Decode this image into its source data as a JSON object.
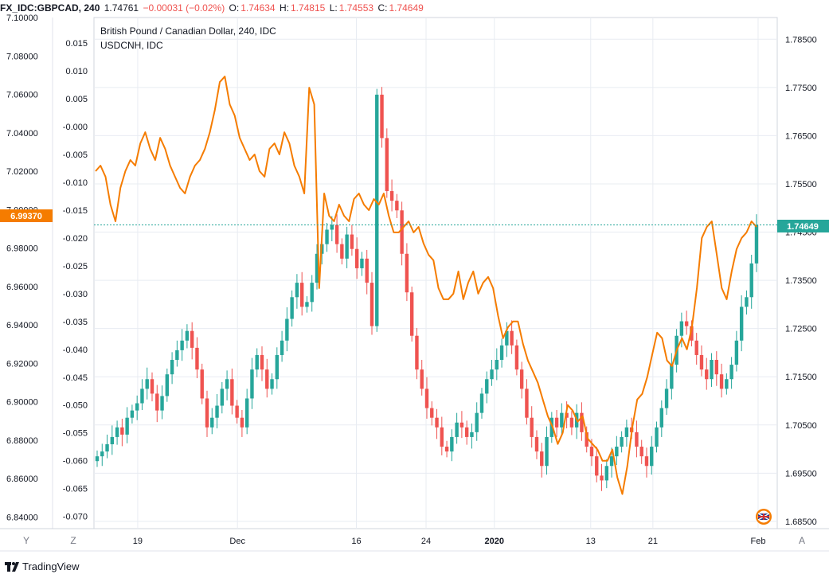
{
  "header": {
    "symbol": "FX_IDC:GBPCAD, 240",
    "last": "1.74761",
    "change": "−0.00031 (−0.02%)",
    "o_label": "O:",
    "o_val": "1.74634",
    "h_label": "H:",
    "h_val": "1.74815",
    "l_label": "L:",
    "l_val": "1.74553",
    "c_label": "C:",
    "c_val": "1.74649"
  },
  "legend": {
    "line1": "British Pound / Canadian Dollar, 240, IDC",
    "line2": "USDCNH, IDC"
  },
  "colors": {
    "up": "#26a69a",
    "down": "#ef5350",
    "overlay": "#f57c00",
    "grid": "#e8ecf2",
    "text": "#131722"
  },
  "price_tags": {
    "left_value": "6.99370",
    "right_value": "1.74649"
  },
  "footer": {
    "brand": "TradingView",
    "y_button": "Y",
    "z_button": "Z",
    "a_button": "A"
  },
  "chart_data": {
    "type": "line",
    "x_ticks": [
      "19",
      "Dec",
      "16",
      "24",
      "2020",
      "13",
      "21",
      "Feb"
    ],
    "left_axis_outer": {
      "ticks": [
        "7.10000",
        "7.08000",
        "7.06000",
        "7.04000",
        "7.02000",
        "7.00000",
        "6.98000",
        "6.96000",
        "6.94000",
        "6.92000",
        "6.90000",
        "6.88000",
        "6.86000",
        "6.84000"
      ],
      "range": [
        6.834,
        7.1
      ]
    },
    "left_axis_inner": {
      "ticks": [
        "0.015",
        "0.010",
        "0.005",
        "-0.000",
        "-0.005",
        "-0.010",
        "-0.015",
        "-0.020",
        "-0.025",
        "-0.030",
        "-0.035",
        "-0.040",
        "-0.045",
        "-0.050",
        "-0.055",
        "-0.060",
        "-0.065",
        "-0.070"
      ],
      "range": [
        -0.0722,
        0.0196
      ]
    },
    "right_axis": {
      "ticks": [
        "1.78500",
        "1.77500",
        "1.76500",
        "1.75500",
        "1.74500",
        "1.73500",
        "1.72500",
        "1.71500",
        "1.70500",
        "1.69500",
        "1.68500"
      ],
      "range": [
        1.6835,
        1.7895
      ]
    },
    "series": [
      {
        "name": "British Pound / Canadian Dollar, 240, IDC",
        "kind": "candles",
        "axis": "right",
        "values": [
          1.6985,
          1.6995,
          1.701,
          1.7025,
          1.7045,
          1.703,
          1.7065,
          1.708,
          1.7095,
          1.7125,
          1.7145,
          1.7115,
          1.708,
          1.711,
          1.7155,
          1.7185,
          1.7205,
          1.7225,
          1.7245,
          1.721,
          1.7165,
          1.7105,
          1.7045,
          1.7065,
          1.709,
          1.7125,
          1.7145,
          1.709,
          1.7065,
          1.7045,
          1.7105,
          1.7165,
          1.7195,
          1.7165,
          1.7125,
          1.7145,
          1.7195,
          1.7225,
          1.727,
          1.7315,
          1.7345,
          1.7295,
          1.7305,
          1.7345,
          1.7405,
          1.7425,
          1.7455,
          1.7465,
          1.7425,
          1.7395,
          1.7445,
          1.7415,
          1.7375,
          1.7395,
          1.7345,
          1.7255,
          1.7735,
          1.7645,
          1.7535,
          1.7515,
          1.7495,
          1.7405,
          1.7325,
          1.7235,
          1.7165,
          1.7125,
          1.7085,
          1.7065,
          1.7045,
          1.7005,
          1.6995,
          1.7025,
          1.7055,
          1.7045,
          1.7025,
          1.7035,
          1.7075,
          1.7115,
          1.7145,
          1.7165,
          1.7185,
          1.7215,
          1.7245,
          1.7215,
          1.7165,
          1.7125,
          1.7065,
          1.7025,
          1.6995,
          1.6965,
          1.7025,
          1.7065,
          1.7045,
          1.7075,
          1.7065,
          1.7045,
          1.7075,
          1.7035,
          1.7005,
          1.6985,
          1.6945,
          1.6935,
          1.6965,
          1.6985,
          1.7005,
          1.7025,
          1.7045,
          1.7035,
          1.7005,
          1.6985,
          1.6965,
          1.7005,
          1.7045,
          1.7085,
          1.7125,
          1.7175,
          1.7235,
          1.7265,
          1.7255,
          1.7225,
          1.7195,
          1.7165,
          1.7145,
          1.7185,
          1.7155,
          1.7125,
          1.7145,
          1.7175,
          1.7225,
          1.7295,
          1.7315,
          1.7385,
          1.7465
        ]
      },
      {
        "name": "USDCNH, IDC",
        "kind": "line",
        "axis": "left_inner",
        "values": [
          -0.008,
          -0.007,
          -0.009,
          -0.014,
          -0.017,
          -0.011,
          -0.008,
          -0.006,
          -0.007,
          -0.003,
          -0.001,
          -0.004,
          -0.006,
          -0.002,
          -0.004,
          -0.007,
          -0.009,
          -0.011,
          -0.012,
          -0.009,
          -0.007,
          -0.006,
          -0.004,
          -0.001,
          0.003,
          0.008,
          0.009,
          0.004,
          0.002,
          -0.002,
          -0.004,
          -0.006,
          -0.005,
          -0.008,
          -0.009,
          -0.004,
          -0.003,
          -0.005,
          -0.001,
          -0.003,
          -0.007,
          -0.009,
          -0.012,
          0.007,
          0.004,
          -0.029,
          -0.012,
          -0.016,
          -0.017,
          -0.014,
          -0.016,
          -0.017,
          -0.013,
          -0.012,
          -0.014,
          -0.015,
          -0.013,
          -0.014,
          -0.012,
          -0.016,
          -0.019,
          -0.019,
          -0.018,
          -0.017,
          -0.019,
          -0.018,
          -0.021,
          -0.023,
          -0.024,
          -0.029,
          -0.031,
          -0.031,
          -0.03,
          -0.026,
          -0.031,
          -0.028,
          -0.026,
          -0.03,
          -0.028,
          -0.027,
          -0.029,
          -0.034,
          -0.038,
          -0.036,
          -0.035,
          -0.035,
          -0.039,
          -0.042,
          -0.044,
          -0.046,
          -0.049,
          -0.052,
          -0.054,
          -0.057,
          -0.055,
          -0.05,
          -0.051,
          -0.053,
          -0.052,
          -0.056,
          -0.057,
          -0.058,
          -0.06,
          -0.06,
          -0.058,
          -0.063,
          -0.066,
          -0.061,
          -0.054,
          -0.049,
          -0.048,
          -0.045,
          -0.041,
          -0.037,
          -0.038,
          -0.042,
          -0.043,
          -0.04,
          -0.038,
          -0.04,
          -0.036,
          -0.029,
          -0.02,
          -0.018,
          -0.017,
          -0.023,
          -0.029,
          -0.031,
          -0.026,
          -0.022,
          -0.02,
          -0.019,
          -0.017,
          -0.018
        ]
      }
    ],
    "current_value_left": 6.9937,
    "current_value_right": 1.74649
  }
}
